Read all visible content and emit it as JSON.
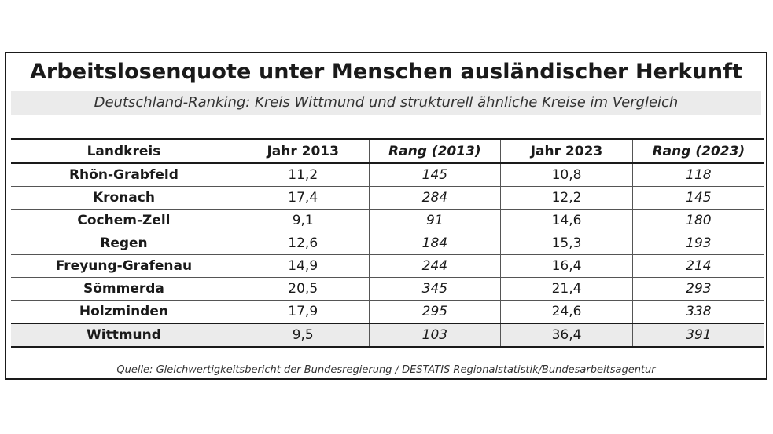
{
  "title": "Arbeitslosenquote unter Menschen ausländischer Herkunft",
  "subtitle": "Deutschland-Ranking: Kreis Wittmund und strukturell ähnliche Kreise im Vergleich",
  "table": {
    "headers": [
      "Landkreis",
      "Jahr 2013",
      "Rang (2013)",
      "Jahr 2023",
      "Rang (2023)"
    ],
    "rows": [
      [
        "Rhön-Grabfeld",
        "11,2",
        "145",
        "10,8",
        "118"
      ],
      [
        "Kronach",
        "17,4",
        "284",
        "12,2",
        "145"
      ],
      [
        "Cochem-Zell",
        "9,1",
        "91",
        "14,6",
        "180"
      ],
      [
        "Regen",
        "12,6",
        "184",
        "15,3",
        "193"
      ],
      [
        "Freyung-Grafenau",
        "14,9",
        "244",
        "16,4",
        "214"
      ],
      [
        "Sömmerda",
        "20,5",
        "345",
        "21,4",
        "293"
      ],
      [
        "Holzminden",
        "17,9",
        "295",
        "24,6",
        "338"
      ],
      [
        "Wittmund",
        "9,5",
        "103",
        "36,4",
        "391"
      ]
    ],
    "highlight_row": "Wittmund",
    "highlight_color": "#ebebeb"
  },
  "source": "Quelle: Gleichwertigkeitsbericht der Bundesregierung / DESTATIS Regionalstatistik/Bundesarbeitsagentur"
}
